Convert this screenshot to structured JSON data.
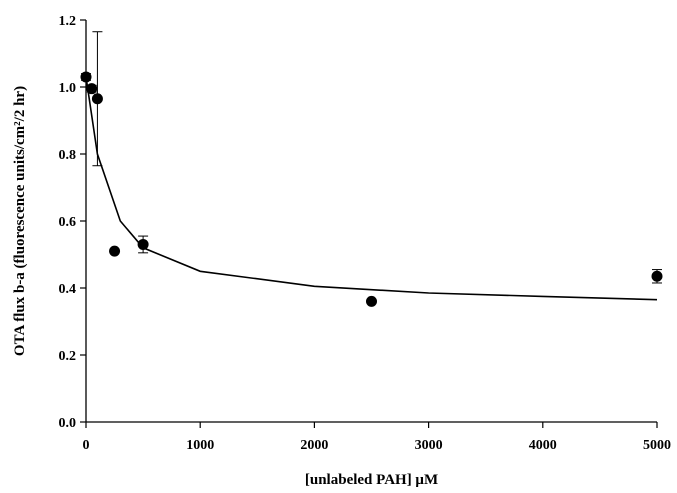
{
  "chart_data": {
    "type": "scatter",
    "title": "",
    "xlabel": "[unlabeled PAH] μM",
    "ylabel": "OTA flux b-a (fluorescence units/cm²/2 hr)",
    "xlim": [
      0,
      5000
    ],
    "ylim": [
      0,
      1.2
    ],
    "x_ticks": [
      0,
      1000,
      2000,
      3000,
      4000,
      5000
    ],
    "y_ticks": [
      0.0,
      0.2,
      0.4,
      0.6,
      0.8,
      1.0,
      1.2
    ],
    "x_tick_labels": [
      "0",
      "1000",
      "2000",
      "3000",
      "4000",
      "5000"
    ],
    "y_tick_labels": [
      "0.0",
      "0.2",
      "0.4",
      "0.6",
      "0.8",
      "1.0",
      "1.2"
    ],
    "grid": false,
    "legend": "none",
    "series": [
      {
        "points": [
          {
            "x": 0,
            "y": 1.03,
            "err": 0.01
          },
          {
            "x": 50,
            "y": 0.995,
            "err": 0.01
          },
          {
            "x": 100,
            "y": 0.965,
            "err": 0.2
          },
          {
            "x": 250,
            "y": 0.51,
            "err": 0.0
          },
          {
            "x": 500,
            "y": 0.53,
            "err": 0.025
          },
          {
            "x": 2500,
            "y": 0.36,
            "err": 0.0
          },
          {
            "x": 5000,
            "y": 0.435,
            "err": 0.02
          }
        ]
      }
    ],
    "fit_curve": {
      "type": "hyperbolic decay",
      "points": [
        {
          "x": 0,
          "y": 1.03
        },
        {
          "x": 100,
          "y": 0.8
        },
        {
          "x": 300,
          "y": 0.6
        },
        {
          "x": 500,
          "y": 0.52
        },
        {
          "x": 1000,
          "y": 0.45
        },
        {
          "x": 2000,
          "y": 0.405
        },
        {
          "x": 3000,
          "y": 0.385
        },
        {
          "x": 4000,
          "y": 0.375
        },
        {
          "x": 5000,
          "y": 0.365
        }
      ]
    }
  }
}
